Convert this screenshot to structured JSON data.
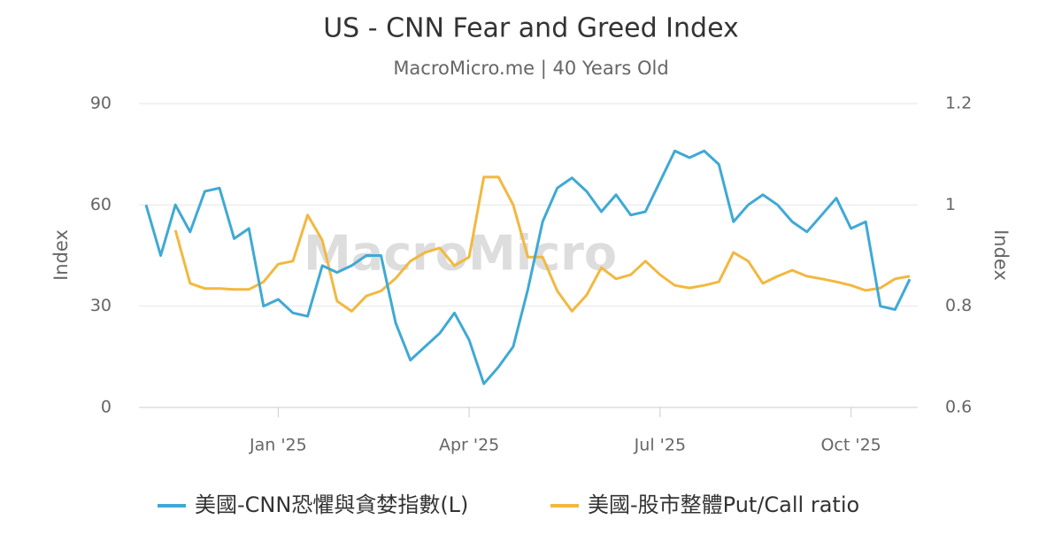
{
  "chart_data": {
    "type": "line",
    "title": "US - CNN Fear and Greed Index",
    "subtitle": "MacroMicro.me | 40 Years Old",
    "watermark": "MacroMicro",
    "y_label": "Index",
    "y2_label": "Index",
    "categories": [
      null,
      null,
      null,
      null,
      null,
      null,
      null,
      null,
      null,
      "Jan '25",
      null,
      null,
      null,
      null,
      null,
      null,
      null,
      null,
      null,
      null,
      null,
      null,
      "Apr '25",
      null,
      null,
      null,
      null,
      null,
      null,
      null,
      null,
      null,
      null,
      null,
      null,
      "Jul '25",
      null,
      null,
      null,
      null,
      null,
      null,
      null,
      null,
      null,
      null,
      null,
      null,
      "Oct '25",
      null,
      null,
      null,
      null
    ],
    "series": [
      {
        "name": "美國-CNN恐懼與貪婪指數(L)",
        "color": "#3fa9d5",
        "values": [
          60,
          45,
          60,
          52,
          64,
          65,
          50,
          53,
          30,
          32,
          28,
          27,
          42,
          40,
          42,
          45,
          45,
          25,
          14,
          18,
          22,
          28,
          20,
          7,
          12,
          18,
          35,
          55,
          65,
          68,
          64,
          58,
          63,
          57,
          58,
          67,
          76,
          74,
          76,
          72,
          55,
          60,
          63,
          60,
          55,
          52,
          57,
          62,
          53,
          55,
          30,
          29,
          38
        ]
      },
      {
        "name": "美國-股市整體Put/Call ratio",
        "color": "#f2b840",
        "axis": "y2",
        "values": [
          null,
          null,
          0.95,
          0.845,
          0.835,
          0.835,
          0.833,
          0.833,
          0.848,
          0.883,
          0.889,
          0.98,
          0.93,
          0.81,
          0.79,
          0.82,
          0.83,
          0.855,
          0.889,
          0.906,
          0.915,
          0.88,
          0.897,
          1.055,
          1.055,
          1.0,
          0.897,
          0.897,
          0.83,
          0.79,
          0.822,
          0.876,
          0.854,
          0.862,
          0.889,
          0.862,
          0.841,
          0.836,
          0.841,
          0.848,
          0.906,
          0.889,
          0.845,
          0.859,
          0.871,
          0.859,
          0.854,
          0.848,
          0.841,
          0.831,
          0.836,
          0.854,
          0.859
        ]
      }
    ],
    "ylim": [
      0,
      90
    ],
    "yticks": [
      0,
      30,
      60,
      90
    ],
    "y2lim": [
      0.6,
      1.2
    ],
    "y2ticks": [
      0.6,
      0.8,
      1,
      1.2
    ],
    "grid": true,
    "legend": "bottom"
  }
}
